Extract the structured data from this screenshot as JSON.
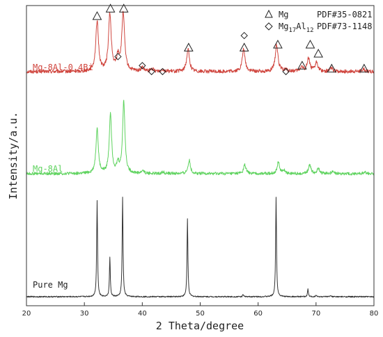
{
  "chart_data": {
    "type": "line",
    "title": "",
    "xlabel": "2 Theta/degree",
    "ylabel": "Intensity/a.u.",
    "xlim": [
      20,
      80
    ],
    "x_ticks": [
      "20",
      "30",
      "40",
      "50",
      "60",
      "70",
      "80"
    ],
    "y_ticks": [],
    "grid": false,
    "legend": {
      "placement": "top-right",
      "entries": [
        {
          "marker": "triangle",
          "phase": "Mg",
          "pdf": "PDF#35-0821"
        },
        {
          "marker": "diamond",
          "phase": "Mg17Al12",
          "pdf": "PDF#73-1148"
        }
      ]
    },
    "series": [
      {
        "name": "Mg-8Al-0.4Bi",
        "color": "#d0463f",
        "baseline": 0.78,
        "noise": 0.006,
        "peaks": [
          [
            32.2,
            0.165
          ],
          [
            34.4,
            0.19
          ],
          [
            36.7,
            0.195
          ],
          [
            35.8,
            0.045
          ],
          [
            47.9,
            0.075
          ],
          [
            57.5,
            0.075
          ],
          [
            63.2,
            0.09
          ],
          [
            67.5,
            0.015
          ],
          [
            68.7,
            0.045
          ],
          [
            70.1,
            0.03
          ],
          [
            72.6,
            0.012
          ],
          [
            78.2,
            0.008
          ],
          [
            40.0,
            0.012
          ],
          [
            41.7,
            0.008
          ],
          [
            43.5,
            0.008
          ],
          [
            64.7,
            0.006
          ]
        ],
        "width": 0.28
      },
      {
        "name": "Mg-8Al",
        "color": "#5fd35f",
        "baseline": 0.44,
        "noise": 0.005,
        "peaks": [
          [
            32.2,
            0.15
          ],
          [
            34.5,
            0.2
          ],
          [
            36.8,
            0.24
          ],
          [
            35.8,
            0.03
          ],
          [
            48.1,
            0.045
          ],
          [
            57.7,
            0.03
          ],
          [
            63.5,
            0.04
          ],
          [
            64.5,
            0.01
          ],
          [
            68.9,
            0.03
          ],
          [
            70.4,
            0.018
          ],
          [
            72.8,
            0.006
          ],
          [
            78.5,
            0.005
          ],
          [
            40.1,
            0.01
          ],
          [
            43.6,
            0.006
          ]
        ],
        "width": 0.24
      },
      {
        "name": "Pure Mg",
        "color": "#333333",
        "baseline": 0.03,
        "noise": 0.002,
        "peaks": [
          [
            32.2,
            0.32
          ],
          [
            34.4,
            0.13
          ],
          [
            36.6,
            0.33
          ],
          [
            47.8,
            0.26
          ],
          [
            57.4,
            0.007
          ],
          [
            63.1,
            0.33
          ],
          [
            68.6,
            0.025
          ],
          [
            70.0,
            0.006
          ],
          [
            72.5,
            0.004
          ]
        ],
        "width": 0.09
      }
    ],
    "annotations": {
      "mg_triangles": [
        [
          32.2,
          0.965
        ],
        [
          34.5,
          0.99
        ],
        [
          36.8,
          0.99
        ],
        [
          48.0,
          0.86
        ],
        [
          57.6,
          0.86
        ],
        [
          63.4,
          0.87
        ],
        [
          67.6,
          0.8
        ],
        [
          69.0,
          0.87
        ],
        [
          70.4,
          0.84
        ],
        [
          72.7,
          0.79
        ],
        [
          78.3,
          0.79
        ]
      ],
      "mg17al12_diamonds": [
        [
          35.8,
          0.83
        ],
        [
          40.0,
          0.8
        ],
        [
          41.6,
          0.78
        ],
        [
          43.5,
          0.78
        ],
        [
          57.6,
          0.9
        ],
        [
          64.8,
          0.78
        ]
      ]
    }
  }
}
